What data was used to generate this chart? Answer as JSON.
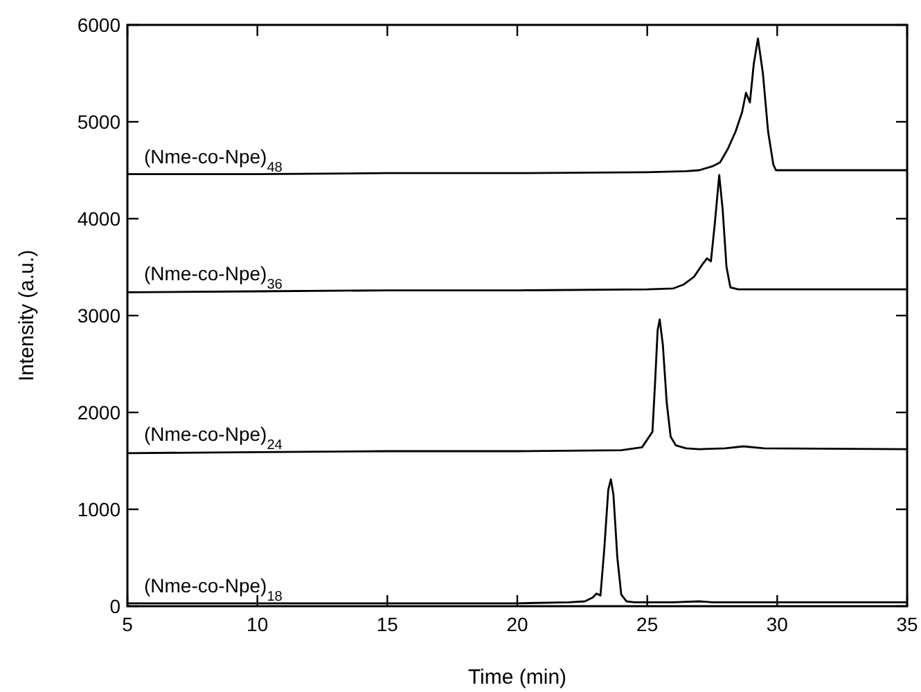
{
  "chart_data": {
    "type": "line",
    "xlabel": "Time (min)",
    "ylabel": "Intensity (a.u.)",
    "xlim": [
      5,
      35
    ],
    "ylim": [
      0,
      6000
    ],
    "xticks": [
      5,
      10,
      15,
      20,
      25,
      30,
      35
    ],
    "yticks": [
      0,
      1000,
      2000,
      3000,
      4000,
      5000,
      6000
    ],
    "grid": false,
    "marker": "none",
    "line_style": "solid",
    "series": [
      {
        "name": "(Nme-co-Npe)$_{18}$",
        "color": "#000000",
        "x": [
          5,
          10,
          15,
          20,
          22,
          22.6,
          22.9,
          23.05,
          23.2,
          23.35,
          23.5,
          23.6,
          23.7,
          23.85,
          24.0,
          24.2,
          24.5,
          26,
          27,
          27.5,
          30,
          35
        ],
        "values": [
          30,
          30,
          30,
          30,
          40,
          50,
          90,
          130,
          110,
          600,
          1200,
          1310,
          1150,
          500,
          120,
          50,
          40,
          40,
          50,
          40,
          40,
          40
        ]
      },
      {
        "name": "(Nme-co-Npe)$_{24}$",
        "color": "#000000",
        "x": [
          5,
          10,
          15,
          20,
          24,
          24.8,
          25.1,
          25.2,
          25.3,
          25.4,
          25.48,
          25.6,
          25.75,
          25.9,
          26.1,
          26.5,
          27,
          28,
          28.7,
          29.5,
          35
        ],
        "values": [
          1580,
          1590,
          1600,
          1600,
          1610,
          1640,
          1760,
          1800,
          2300,
          2850,
          2960,
          2700,
          2100,
          1750,
          1660,
          1630,
          1620,
          1630,
          1650,
          1630,
          1620
        ]
      },
      {
        "name": "(Nme-co-Npe)$_{36}$",
        "color": "#000000",
        "x": [
          5,
          10,
          15,
          20,
          25,
          26,
          26.4,
          26.8,
          27.1,
          27.3,
          27.45,
          27.6,
          27.77,
          27.9,
          28.05,
          28.2,
          28.5,
          30,
          35
        ],
        "values": [
          3240,
          3250,
          3260,
          3260,
          3270,
          3280,
          3320,
          3400,
          3520,
          3590,
          3560,
          3950,
          4450,
          4100,
          3500,
          3290,
          3270,
          3270,
          3270
        ]
      },
      {
        "name": "(Nme-co-Npe)$_{48}$",
        "color": "#000000",
        "x": [
          5,
          10,
          15,
          20,
          25,
          26.5,
          27.0,
          27.5,
          27.8,
          28.1,
          28.4,
          28.65,
          28.8,
          28.95,
          29.1,
          29.26,
          29.45,
          29.65,
          29.85,
          29.95,
          30.5,
          35
        ],
        "values": [
          4460,
          4460,
          4470,
          4470,
          4480,
          4490,
          4500,
          4540,
          4580,
          4720,
          4900,
          5100,
          5300,
          5200,
          5600,
          5860,
          5500,
          4900,
          4560,
          4500,
          4500,
          4500
        ]
      }
    ]
  }
}
